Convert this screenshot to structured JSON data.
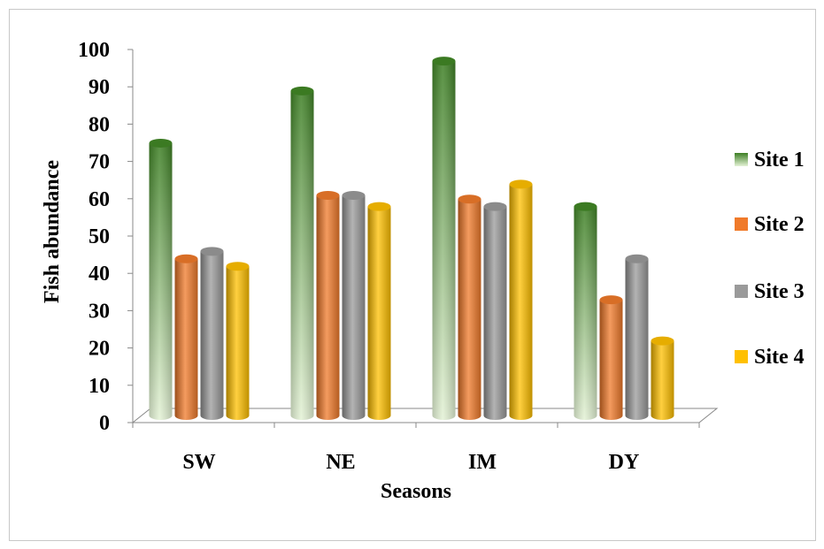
{
  "chart_data": {
    "type": "bar",
    "style": "3d-cylinder",
    "title": "",
    "xlabel": "Seasons",
    "ylabel": "Fish abundance",
    "categories": [
      "SW",
      "NE",
      "IM",
      "DY"
    ],
    "ylim": [
      0,
      100
    ],
    "yticks": [
      0,
      10,
      20,
      30,
      40,
      50,
      60,
      70,
      80,
      90,
      100
    ],
    "grid": false,
    "legend_position": "right",
    "series": [
      {
        "name": "Site 1",
        "values": [
          73,
          87,
          95,
          56
        ],
        "color": "#5a9a3a"
      },
      {
        "name": "Site 2",
        "values": [
          42,
          59,
          58,
          31
        ],
        "color": "#f07a2a"
      },
      {
        "name": "Site 3",
        "values": [
          44,
          59,
          56,
          42
        ],
        "color": "#9a9a9a"
      },
      {
        "name": "Site 4",
        "values": [
          40,
          56,
          62,
          20
        ],
        "color": "#ffc000"
      }
    ]
  }
}
